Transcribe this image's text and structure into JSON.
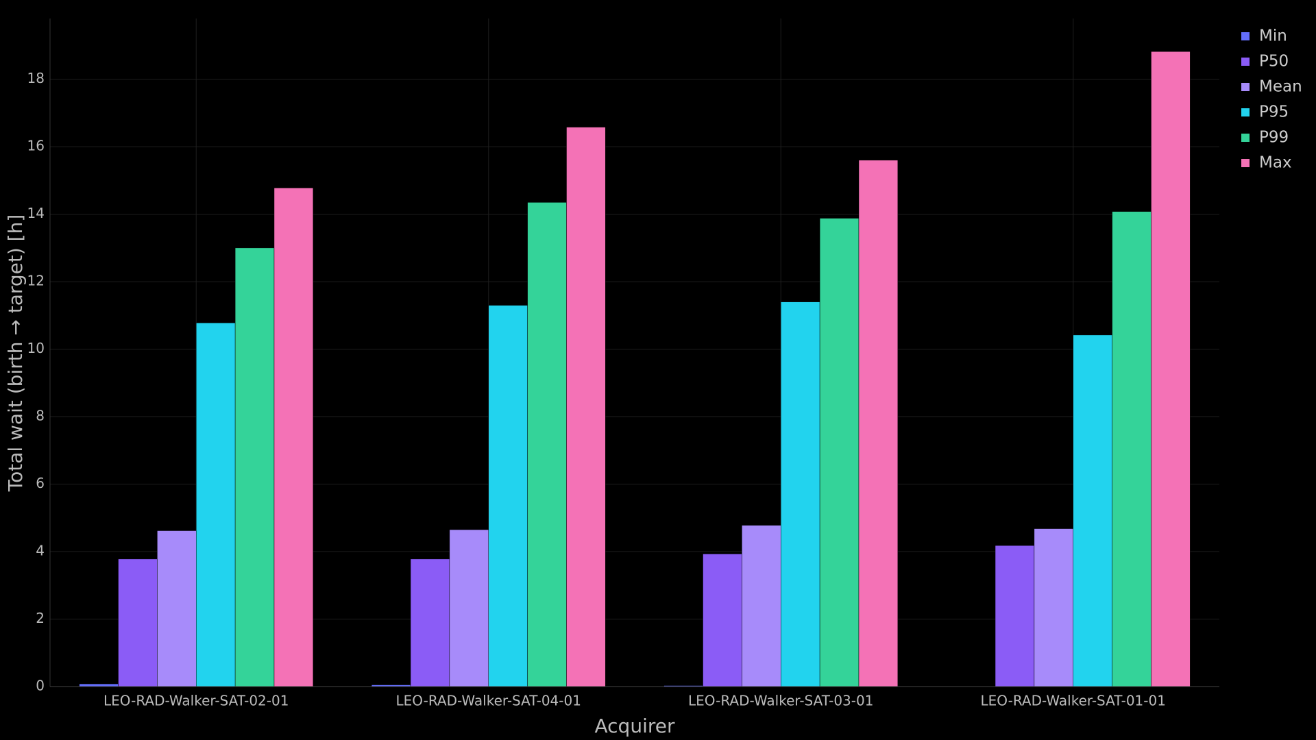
{
  "chart_data": {
    "type": "bar",
    "x_label": "Acquirer",
    "y_label": "Total wait (birth → target) [h]",
    "categories": [
      "LEO-RAD-Walker-SAT-02-01",
      "LEO-RAD-Walker-SAT-04-01",
      "LEO-RAD-Walker-SAT-03-01",
      "LEO-RAD-Walker-SAT-01-01"
    ],
    "series": [
      {
        "name": "Min",
        "color": "#636efa",
        "values": [
          0.08,
          0.05,
          0.03,
          0
        ]
      },
      {
        "name": "P50",
        "color": "#8b5cf6",
        "values": [
          3.78,
          3.78,
          3.93,
          4.18
        ]
      },
      {
        "name": "Mean",
        "color": "#a78bfa",
        "values": [
          4.62,
          4.65,
          4.78,
          4.68
        ]
      },
      {
        "name": "P95",
        "color": "#22d3ee",
        "values": [
          10.78,
          11.3,
          11.4,
          10.42
        ]
      },
      {
        "name": "P99",
        "color": "#34d399",
        "values": [
          13.0,
          14.35,
          13.88,
          14.08
        ]
      },
      {
        "name": "Max",
        "color": "#f472b6",
        "values": [
          14.78,
          16.58,
          15.6,
          18.82
        ]
      }
    ],
    "ylim": [
      0,
      19.8
    ],
    "yticks": [
      0,
      2,
      4,
      6,
      8,
      10,
      12,
      14,
      16,
      18
    ],
    "grid": true,
    "legend": "top-right"
  }
}
